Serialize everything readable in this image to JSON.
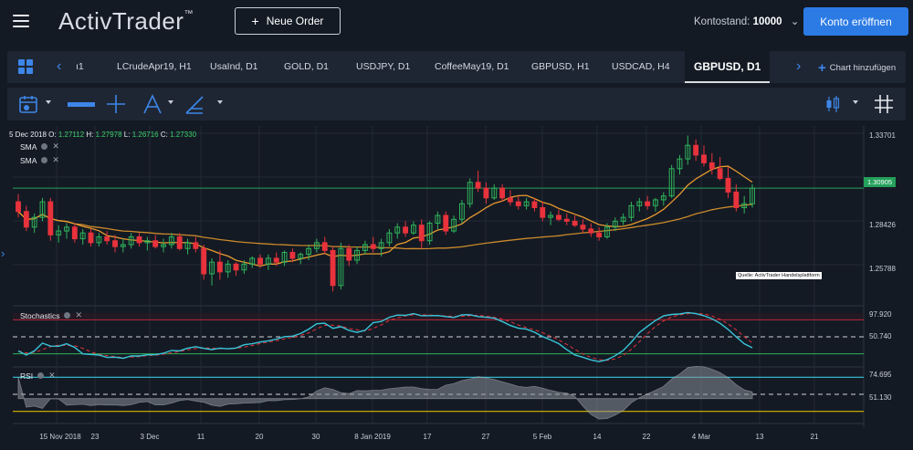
{
  "header": {
    "logo_text": "ActivTrader",
    "logo_tm": "™",
    "new_order_label": "Neue Order",
    "account_label": "Kontostand:",
    "account_value": "10000",
    "open_account_label": "Konto eröffnen"
  },
  "tabs": [
    {
      "label": "ı1"
    },
    {
      "label": "LCrudeApr19, H1"
    },
    {
      "label": "UsaInd, D1"
    },
    {
      "label": "GOLD, D1"
    },
    {
      "label": "USDJPY, D1"
    },
    {
      "label": "CoffeeMay19, D1"
    },
    {
      "label": "GBPUSD, H1"
    },
    {
      "label": "USDCAD, H4"
    },
    {
      "label": "GBPUSD, D1",
      "active": true
    }
  ],
  "add_chart_label": "Chart hinzufügen",
  "legend": {
    "date": "5 Dec 2018",
    "o_label": "O:",
    "o_value": "1.27112",
    "h_label": "H:",
    "h_value": "1.27978",
    "l_label": "L:",
    "l_value": "1.26716",
    "c_label": "C:",
    "c_value": "1.27330"
  },
  "indicators": {
    "sma1": "SMA",
    "sma2": "SMA",
    "stochastics": "Stochastics",
    "rsi": "RSI"
  },
  "source_label": "Quelle: ActivTrader Handelsplattform",
  "price_axis": {
    "labels": [
      "1.33701",
      "1.28426",
      "1.25788"
    ],
    "current": "1.30905"
  },
  "stoch_axis": [
    "97.920",
    "50.740"
  ],
  "rsi_axis": [
    "74.695",
    "51.130"
  ],
  "x_labels": [
    "15 Nov 2018",
    "23",
    "3 Dec",
    "11",
    "20",
    "30",
    "8 Jan 2019",
    "17",
    "27",
    "5 Feb",
    "14",
    "22",
    "4 Mar",
    "13",
    "21"
  ],
  "colors": {
    "background": "#141a24",
    "accent": "#2c7be5",
    "up_candle": "#2fb35b",
    "down_candle": "#e8323c",
    "sma_fast": "#e69a2e",
    "sma_slow": "#c9892a",
    "stoch_k": "#38c6d9",
    "stoch_d": "#e8323c",
    "rsi_band": "#38c6d9",
    "rsi_low": "#d9b800",
    "current_price_line": "#24a05a"
  },
  "chart_data": {
    "type": "candlestick",
    "instrument": "GBPUSD, D1",
    "ylim": [
      1.25,
      1.34
    ],
    "candles": [
      {
        "o": 1.302,
        "h": 1.306,
        "l": 1.294,
        "c": 1.297
      },
      {
        "o": 1.297,
        "h": 1.3,
        "l": 1.287,
        "c": 1.289
      },
      {
        "o": 1.289,
        "h": 1.296,
        "l": 1.286,
        "c": 1.294
      },
      {
        "o": 1.294,
        "h": 1.304,
        "l": 1.292,
        "c": 1.302
      },
      {
        "o": 1.302,
        "h": 1.304,
        "l": 1.282,
        "c": 1.285
      },
      {
        "o": 1.285,
        "h": 1.29,
        "l": 1.281,
        "c": 1.287
      },
      {
        "o": 1.287,
        "h": 1.291,
        "l": 1.283,
        "c": 1.289
      },
      {
        "o": 1.289,
        "h": 1.291,
        "l": 1.281,
        "c": 1.283
      },
      {
        "o": 1.283,
        "h": 1.288,
        "l": 1.28,
        "c": 1.286
      },
      {
        "o": 1.286,
        "h": 1.288,
        "l": 1.279,
        "c": 1.281
      },
      {
        "o": 1.281,
        "h": 1.286,
        "l": 1.279,
        "c": 1.284
      },
      {
        "o": 1.284,
        "h": 1.287,
        "l": 1.28,
        "c": 1.282
      },
      {
        "o": 1.282,
        "h": 1.285,
        "l": 1.276,
        "c": 1.279
      },
      {
        "o": 1.279,
        "h": 1.283,
        "l": 1.276,
        "c": 1.28
      },
      {
        "o": 1.28,
        "h": 1.286,
        "l": 1.278,
        "c": 1.284
      },
      {
        "o": 1.284,
        "h": 1.286,
        "l": 1.279,
        "c": 1.281
      },
      {
        "o": 1.281,
        "h": 1.284,
        "l": 1.277,
        "c": 1.282
      },
      {
        "o": 1.282,
        "h": 1.285,
        "l": 1.278,
        "c": 1.279
      },
      {
        "o": 1.279,
        "h": 1.283,
        "l": 1.276,
        "c": 1.28
      },
      {
        "o": 1.28,
        "h": 1.286,
        "l": 1.278,
        "c": 1.284
      },
      {
        "o": 1.284,
        "h": 1.286,
        "l": 1.277,
        "c": 1.278
      },
      {
        "o": 1.278,
        "h": 1.283,
        "l": 1.275,
        "c": 1.281
      },
      {
        "o": 1.281,
        "h": 1.284,
        "l": 1.276,
        "c": 1.278
      },
      {
        "o": 1.278,
        "h": 1.28,
        "l": 1.262,
        "c": 1.265
      },
      {
        "o": 1.265,
        "h": 1.273,
        "l": 1.259,
        "c": 1.271
      },
      {
        "o": 1.271,
        "h": 1.277,
        "l": 1.262,
        "c": 1.266
      },
      {
        "o": 1.266,
        "h": 1.272,
        "l": 1.263,
        "c": 1.27
      },
      {
        "o": 1.27,
        "h": 1.271,
        "l": 1.264,
        "c": 1.267
      },
      {
        "o": 1.267,
        "h": 1.272,
        "l": 1.265,
        "c": 1.27
      },
      {
        "o": 1.27,
        "h": 1.274,
        "l": 1.268,
        "c": 1.273
      },
      {
        "o": 1.273,
        "h": 1.275,
        "l": 1.268,
        "c": 1.27
      },
      {
        "o": 1.27,
        "h": 1.275,
        "l": 1.267,
        "c": 1.273
      },
      {
        "o": 1.273,
        "h": 1.276,
        "l": 1.269,
        "c": 1.271
      },
      {
        "o": 1.271,
        "h": 1.277,
        "l": 1.269,
        "c": 1.276
      },
      {
        "o": 1.276,
        "h": 1.278,
        "l": 1.271,
        "c": 1.273
      },
      {
        "o": 1.273,
        "h": 1.276,
        "l": 1.27,
        "c": 1.275
      },
      {
        "o": 1.275,
        "h": 1.28,
        "l": 1.272,
        "c": 1.278
      },
      {
        "o": 1.278,
        "h": 1.283,
        "l": 1.276,
        "c": 1.281
      },
      {
        "o": 1.281,
        "h": 1.284,
        "l": 1.275,
        "c": 1.277
      },
      {
        "o": 1.277,
        "h": 1.279,
        "l": 1.256,
        "c": 1.259
      },
      {
        "o": 1.259,
        "h": 1.281,
        "l": 1.257,
        "c": 1.278
      },
      {
        "o": 1.278,
        "h": 1.28,
        "l": 1.269,
        "c": 1.272
      },
      {
        "o": 1.272,
        "h": 1.279,
        "l": 1.27,
        "c": 1.277
      },
      {
        "o": 1.277,
        "h": 1.282,
        "l": 1.275,
        "c": 1.28
      },
      {
        "o": 1.28,
        "h": 1.284,
        "l": 1.276,
        "c": 1.278
      },
      {
        "o": 1.278,
        "h": 1.283,
        "l": 1.274,
        "c": 1.281
      },
      {
        "o": 1.281,
        "h": 1.288,
        "l": 1.279,
        "c": 1.286
      },
      {
        "o": 1.286,
        "h": 1.291,
        "l": 1.283,
        "c": 1.289
      },
      {
        "o": 1.289,
        "h": 1.292,
        "l": 1.284,
        "c": 1.286
      },
      {
        "o": 1.286,
        "h": 1.292,
        "l": 1.285,
        "c": 1.29
      },
      {
        "o": 1.29,
        "h": 1.293,
        "l": 1.278,
        "c": 1.282
      },
      {
        "o": 1.282,
        "h": 1.292,
        "l": 1.28,
        "c": 1.291
      },
      {
        "o": 1.291,
        "h": 1.297,
        "l": 1.288,
        "c": 1.295
      },
      {
        "o": 1.295,
        "h": 1.297,
        "l": 1.285,
        "c": 1.287
      },
      {
        "o": 1.287,
        "h": 1.295,
        "l": 1.286,
        "c": 1.293
      },
      {
        "o": 1.293,
        "h": 1.303,
        "l": 1.291,
        "c": 1.301
      },
      {
        "o": 1.301,
        "h": 1.314,
        "l": 1.299,
        "c": 1.312
      },
      {
        "o": 1.312,
        "h": 1.318,
        "l": 1.307,
        "c": 1.309
      },
      {
        "o": 1.309,
        "h": 1.312,
        "l": 1.301,
        "c": 1.304
      },
      {
        "o": 1.304,
        "h": 1.311,
        "l": 1.303,
        "c": 1.309
      },
      {
        "o": 1.309,
        "h": 1.311,
        "l": 1.302,
        "c": 1.304
      },
      {
        "o": 1.304,
        "h": 1.308,
        "l": 1.3,
        "c": 1.302
      },
      {
        "o": 1.302,
        "h": 1.305,
        "l": 1.298,
        "c": 1.3
      },
      {
        "o": 1.3,
        "h": 1.304,
        "l": 1.298,
        "c": 1.302
      },
      {
        "o": 1.302,
        "h": 1.304,
        "l": 1.297,
        "c": 1.299
      },
      {
        "o": 1.299,
        "h": 1.302,
        "l": 1.292,
        "c": 1.294
      },
      {
        "o": 1.294,
        "h": 1.297,
        "l": 1.29,
        "c": 1.295
      },
      {
        "o": 1.295,
        "h": 1.298,
        "l": 1.292,
        "c": 1.293
      },
      {
        "o": 1.293,
        "h": 1.296,
        "l": 1.29,
        "c": 1.292
      },
      {
        "o": 1.292,
        "h": 1.295,
        "l": 1.289,
        "c": 1.29
      },
      {
        "o": 1.29,
        "h": 1.293,
        "l": 1.286,
        "c": 1.288
      },
      {
        "o": 1.288,
        "h": 1.291,
        "l": 1.284,
        "c": 1.286
      },
      {
        "o": 1.286,
        "h": 1.289,
        "l": 1.282,
        "c": 1.284
      },
      {
        "o": 1.284,
        "h": 1.291,
        "l": 1.283,
        "c": 1.289
      },
      {
        "o": 1.289,
        "h": 1.294,
        "l": 1.287,
        "c": 1.292
      },
      {
        "o": 1.292,
        "h": 1.296,
        "l": 1.29,
        "c": 1.294
      },
      {
        "o": 1.294,
        "h": 1.302,
        "l": 1.292,
        "c": 1.3
      },
      {
        "o": 1.3,
        "h": 1.304,
        "l": 1.297,
        "c": 1.302
      },
      {
        "o": 1.302,
        "h": 1.305,
        "l": 1.298,
        "c": 1.3
      },
      {
        "o": 1.3,
        "h": 1.304,
        "l": 1.297,
        "c": 1.303
      },
      {
        "o": 1.303,
        "h": 1.307,
        "l": 1.3,
        "c": 1.305
      },
      {
        "o": 1.305,
        "h": 1.321,
        "l": 1.304,
        "c": 1.319
      },
      {
        "o": 1.319,
        "h": 1.326,
        "l": 1.316,
        "c": 1.324
      },
      {
        "o": 1.324,
        "h": 1.336,
        "l": 1.321,
        "c": 1.331
      },
      {
        "o": 1.331,
        "h": 1.334,
        "l": 1.323,
        "c": 1.326
      },
      {
        "o": 1.326,
        "h": 1.331,
        "l": 1.32,
        "c": 1.322
      },
      {
        "o": 1.322,
        "h": 1.327,
        "l": 1.316,
        "c": 1.319
      },
      {
        "o": 1.319,
        "h": 1.325,
        "l": 1.313,
        "c": 1.314
      },
      {
        "o": 1.314,
        "h": 1.32,
        "l": 1.304,
        "c": 1.307
      },
      {
        "o": 1.307,
        "h": 1.311,
        "l": 1.297,
        "c": 1.299
      },
      {
        "o": 1.299,
        "h": 1.305,
        "l": 1.296,
        "c": 1.301
      },
      {
        "o": 1.301,
        "h": 1.311,
        "l": 1.299,
        "c": 1.309
      }
    ]
  }
}
